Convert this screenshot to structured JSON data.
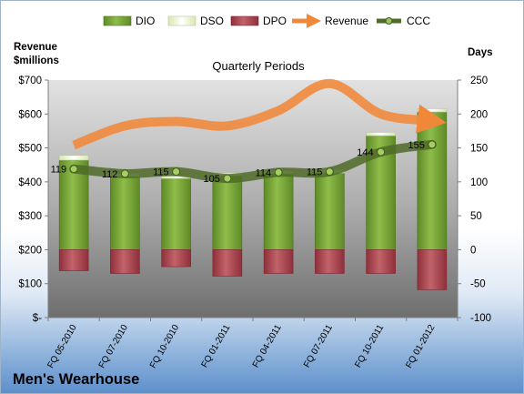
{
  "chart_data": {
    "type": "bar",
    "company": "Men's Wearhouse",
    "title": "Quarterly Periods",
    "left_axis_label_line1": "Revenue",
    "left_axis_label_line2": "$millions",
    "right_axis_label": "Days",
    "left_ylim": [
      0,
      700
    ],
    "left_ticks": [
      "$-",
      "$100",
      "$200",
      "$300",
      "$400",
      "$500",
      "$600",
      "$700"
    ],
    "right_ylim": [
      -100,
      250
    ],
    "right_ticks": [
      "-100",
      "-50",
      "0",
      "50",
      "100",
      "150",
      "200",
      "250"
    ],
    "grid": false,
    "legend_position": "top",
    "categories": [
      "FQ 05-2010",
      "FQ 07-2010",
      "FQ 10-2010",
      "FQ 01-2011",
      "FQ 04-2011",
      "FQ 07-2011",
      "FQ 10-2011",
      "FQ 01-2012"
    ],
    "series": [
      {
        "name": "DIO",
        "type": "stacked-bar",
        "axis": "right",
        "color": "#7aa93c",
        "values": [
          132,
          108,
          105,
          109,
          112,
          113,
          168,
          203
        ]
      },
      {
        "name": "DSO",
        "type": "stacked-bar",
        "axis": "right",
        "color": "#eef5d6",
        "values": [
          7,
          4,
          4,
          4,
          4,
          5,
          5,
          5
        ]
      },
      {
        "name": "DPO",
        "type": "stacked-bar",
        "axis": "right",
        "color": "#b2505a",
        "values": [
          -31,
          -35,
          -25,
          -39,
          -35,
          -35,
          -35,
          -59
        ]
      },
      {
        "name": "Revenue",
        "type": "line",
        "axis": "left",
        "color": "#f0883a",
        "values": [
          508,
          565,
          578,
          565,
          610,
          690,
          600,
          580
        ]
      },
      {
        "name": "CCC",
        "type": "line",
        "axis": "right",
        "color": "#4f6b28",
        "values": [
          119,
          112,
          115,
          105,
          114,
          115,
          144,
          155
        ]
      }
    ],
    "ccc_labels": [
      "119",
      "112",
      "115",
      "105",
      "114",
      "115",
      "144",
      "155"
    ]
  }
}
